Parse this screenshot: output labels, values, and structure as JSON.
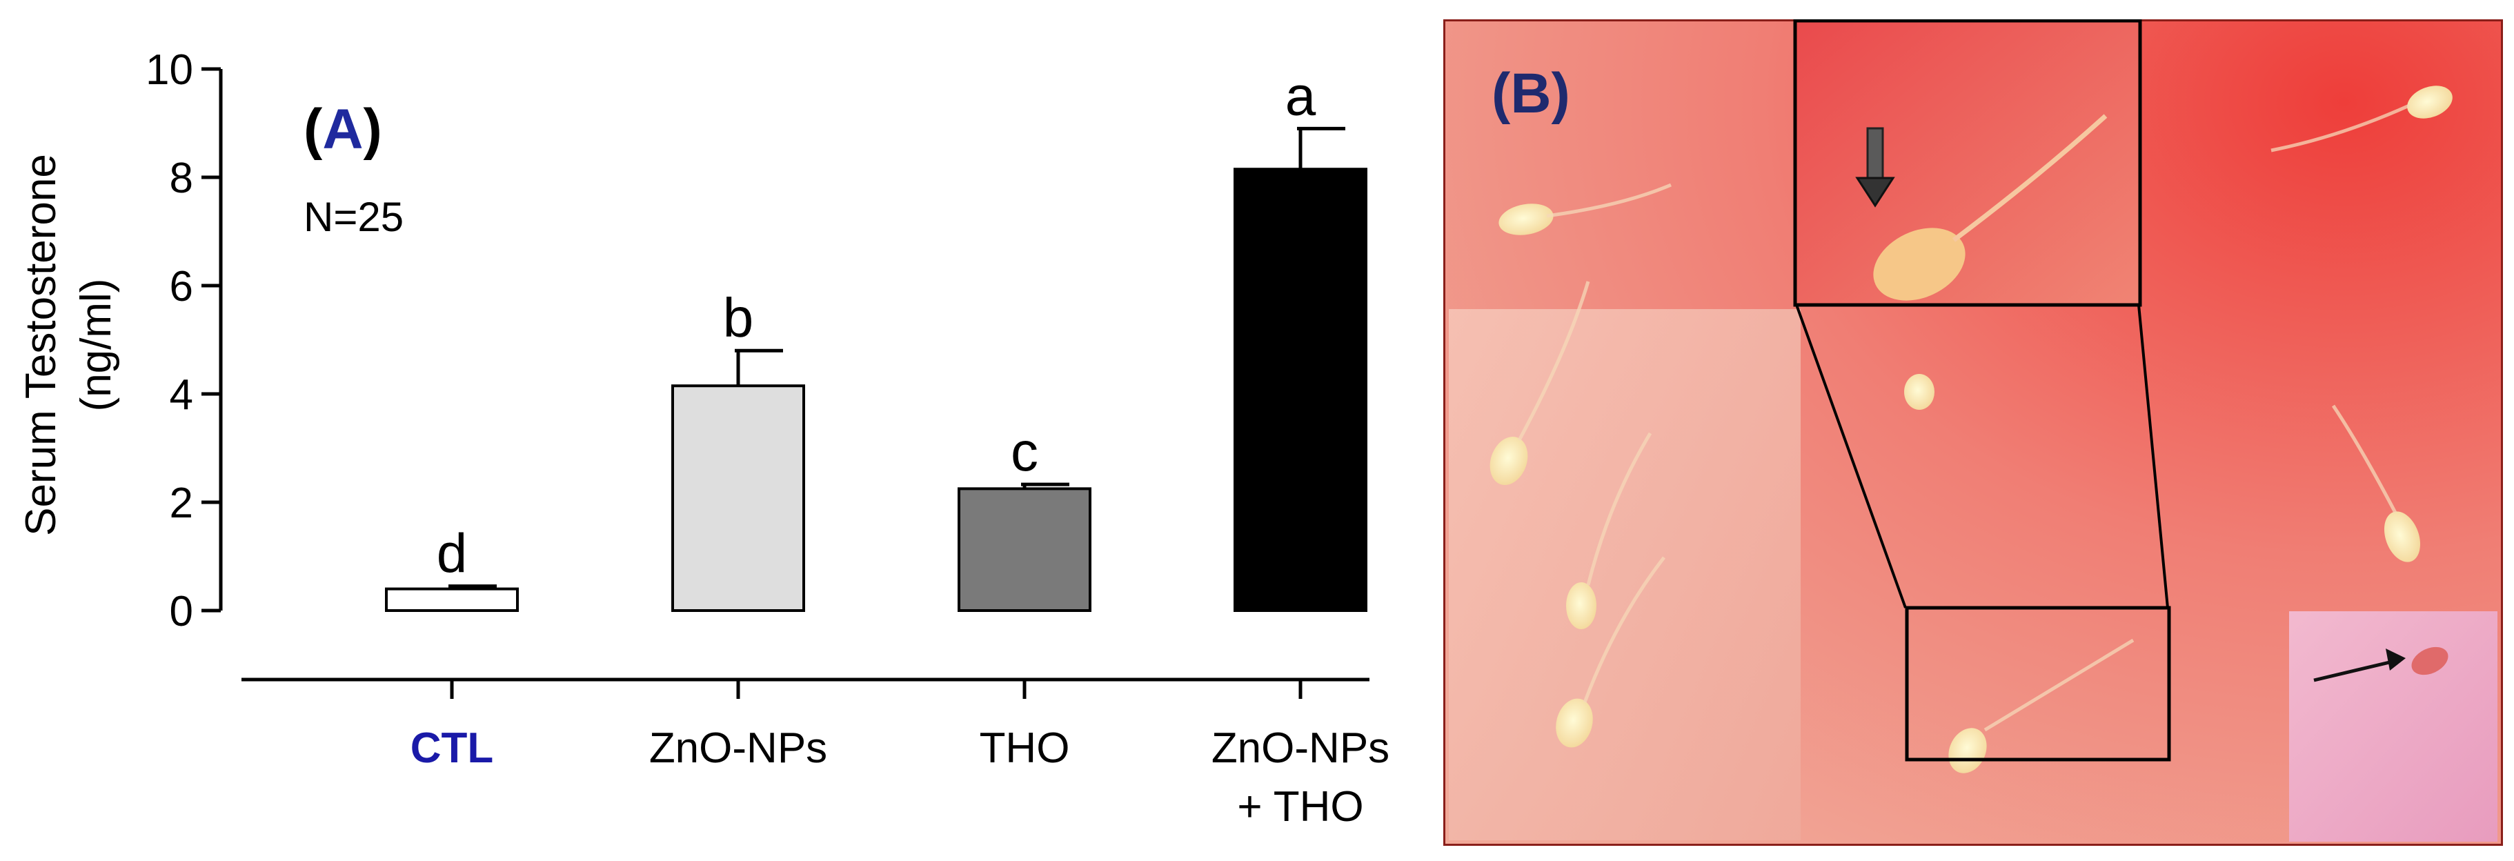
{
  "chart_data": {
    "type": "bar",
    "panel_label": "A",
    "annotation": "N=25",
    "ylabel_line1": "Serum Testosterone",
    "ylabel_line2": "(ng/ml)",
    "ylim": [
      0,
      10
    ],
    "yticks": [
      "0",
      "2",
      "4",
      "6",
      "8",
      "10"
    ],
    "categories": [
      {
        "line1": "CTL",
        "line2": "",
        "color": "#1a1aa8",
        "bold": true
      },
      {
        "line1": "ZnO-NPs",
        "line2": ""
      },
      {
        "line1": "THO",
        "line2": ""
      },
      {
        "line1": "ZnO-NPs",
        "line2": "+ THO"
      }
    ],
    "values": [
      0.4,
      4.15,
      2.25,
      8.15
    ],
    "errors": [
      0.05,
      0.65,
      0.08,
      0.75
    ],
    "significance_letters": [
      "d",
      "b",
      "c",
      "a"
    ],
    "bar_fills": [
      "#ffffff",
      "#dedede",
      "#7a7a7a",
      "#000000"
    ],
    "grid": false,
    "legend": "none"
  },
  "panel_b": {
    "label": "B",
    "label_color": "#1f2a6e"
  },
  "colors": {
    "panel_label_color": "#1f2a9e",
    "axis_color": "#000000"
  }
}
